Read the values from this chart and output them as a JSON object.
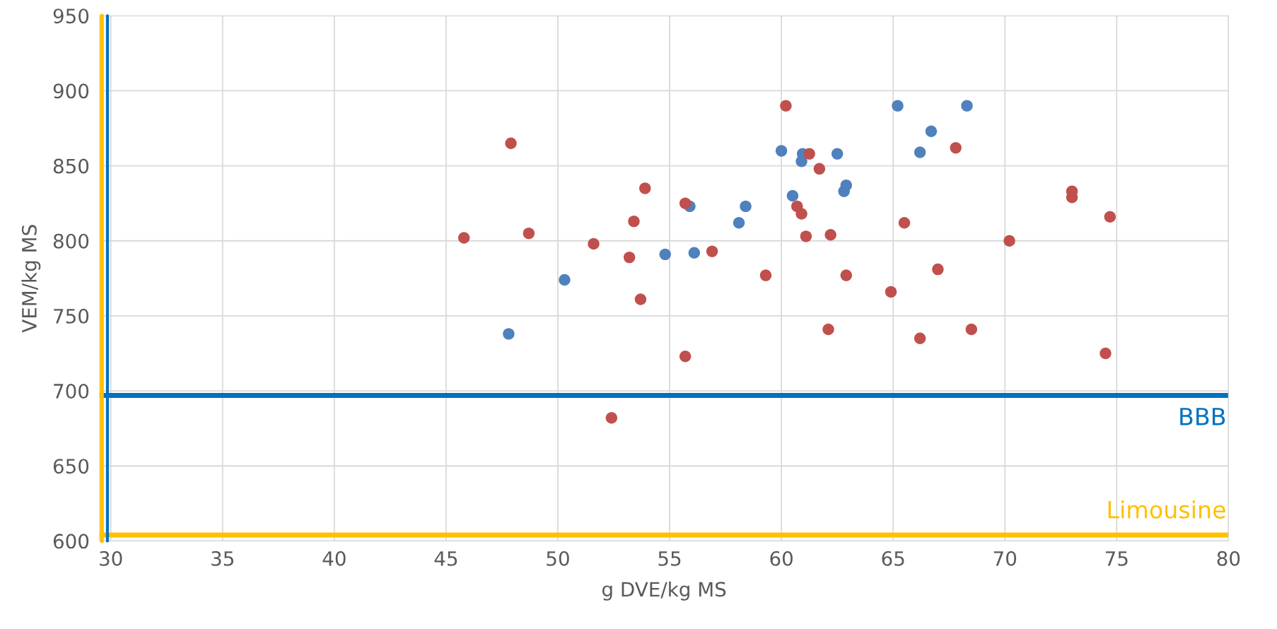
{
  "chart_data": {
    "type": "scatter",
    "xlabel": "g DVE/kg MS",
    "ylabel": "VEM/kg MS",
    "xlim": [
      29.5,
      80
    ],
    "xticks": [
      30,
      35,
      40,
      45,
      50,
      55,
      60,
      65,
      70,
      75,
      80
    ],
    "ylim": [
      600,
      950
    ],
    "yticks": [
      600,
      650,
      700,
      750,
      800,
      850,
      900,
      950
    ],
    "grid": true,
    "legend": false,
    "marker": "circle",
    "series": [
      {
        "color": "#4f81bd",
        "x": [
          47.8,
          50.3,
          54.8,
          55.9,
          56.1,
          58.1,
          58.4,
          60.0,
          60.5,
          60.9,
          60.95,
          62.5,
          62.8,
          62.9,
          65.2,
          66.2,
          66.7,
          68.3
        ],
        "values": [
          738,
          774,
          791,
          823,
          792,
          812,
          823,
          860,
          830,
          853,
          858,
          858,
          833,
          837,
          890,
          859,
          873,
          890
        ]
      },
      {
        "color": "#c0504d",
        "x": [
          45.8,
          47.9,
          48.7,
          51.6,
          52.4,
          53.2,
          53.4,
          53.7,
          53.9,
          55.7,
          55.7,
          56.9,
          59.3,
          60.2,
          60.7,
          60.9,
          61.1,
          61.25,
          61.7,
          62.1,
          62.2,
          62.9,
          64.9,
          65.5,
          67.0,
          66.2,
          67.8,
          68.5,
          70.2,
          73.0,
          73.0,
          74.5,
          74.7
        ],
        "values": [
          802,
          865,
          805,
          798,
          682,
          789,
          813,
          761,
          835,
          825,
          723,
          793,
          777,
          890,
          823,
          818,
          803,
          858,
          848,
          741,
          804,
          777,
          766,
          812,
          781,
          735,
          862,
          741,
          800,
          833,
          829,
          725,
          816
        ]
      }
    ],
    "ref_lines": [
      {
        "axis": "y",
        "value": 697,
        "label": "BBB",
        "color": "#0070c0"
      },
      {
        "axis": "y",
        "value": 604,
        "label": "Limousine",
        "color": "#ffc000"
      },
      {
        "axis": "x",
        "value": 29.6,
        "label": null,
        "color": "#ffc000"
      },
      {
        "axis": "x",
        "value": 29.85,
        "label": null,
        "color": "#0070c0"
      }
    ]
  }
}
